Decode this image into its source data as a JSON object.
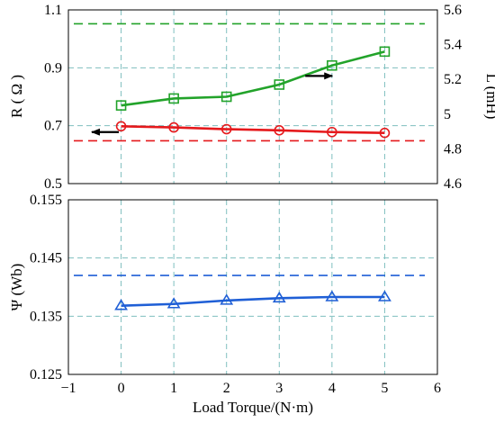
{
  "chart_data": [
    {
      "type": "line",
      "xlabel": "",
      "ylabel": "R ( Ω )",
      "y2label": "L (mH)",
      "xlim": [
        -1,
        6
      ],
      "xticks": [
        -1,
        0,
        1,
        2,
        3,
        4,
        5,
        6
      ],
      "ylim": [
        0.5,
        1.1
      ],
      "yticks": [
        "0.5",
        "0.7",
        "0.9",
        "1.1"
      ],
      "y2lim": [
        4.6,
        5.6
      ],
      "y2ticks": [
        "4.6",
        "4.8",
        "5",
        "5.2",
        "5.4",
        "5.6"
      ],
      "grid": true,
      "x": [
        0,
        1,
        2,
        3,
        4,
        5
      ],
      "series": [
        {
          "axis": "right",
          "color": "#22a32a",
          "marker": "square",
          "values": [
            5.05,
            5.09,
            5.1,
            5.17,
            5.28,
            5.36
          ]
        },
        {
          "axis": "left",
          "color": "#e5191c",
          "marker": "circle",
          "values": [
            0.698,
            0.694,
            0.688,
            0.684,
            0.678,
            0.675
          ]
        }
      ],
      "reference_lines": [
        {
          "axis": "right",
          "value": 5.52,
          "color": "#22a32a",
          "style": "dashed"
        },
        {
          "axis": "left",
          "value": 0.648,
          "color": "#e5191c",
          "style": "dashed"
        }
      ],
      "annotations": [
        {
          "type": "arrow",
          "direction": "left",
          "points_to": "left-axis",
          "x": -0.3,
          "y": 0.678
        },
        {
          "type": "arrow",
          "direction": "right",
          "points_to": "right-axis",
          "x": 3.75,
          "y": 5.22
        }
      ]
    },
    {
      "type": "line",
      "xlabel": "Load Torque/(N·m)",
      "ylabel": "Ψ (Wb)",
      "xlim": [
        -1,
        6
      ],
      "xticks": [
        "−1",
        "0",
        "1",
        "2",
        "3",
        "4",
        "5",
        "6"
      ],
      "ylim": [
        0.125,
        0.155
      ],
      "yticks": [
        "0.125",
        "0.135",
        "0.145",
        "0.155"
      ],
      "grid": true,
      "x": [
        0,
        1,
        2,
        3,
        4,
        5
      ],
      "series": [
        {
          "axis": "left",
          "color": "#1f5fd6",
          "marker": "triangle",
          "values": [
            0.1368,
            0.1371,
            0.1377,
            0.1381,
            0.1383,
            0.1383
          ]
        }
      ],
      "reference_lines": [
        {
          "axis": "left",
          "value": 0.142,
          "color": "#1f5fd6",
          "style": "dashed"
        }
      ]
    }
  ]
}
